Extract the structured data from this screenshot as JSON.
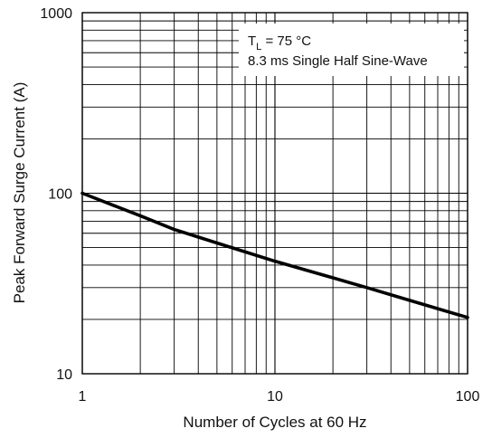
{
  "chart_data": {
    "type": "line",
    "x_scale": "log",
    "y_scale": "log",
    "xlabel": "Number of Cycles at 60 Hz",
    "ylabel": "Peak Forward Surge Current (A)",
    "xlim": [
      1,
      100
    ],
    "ylim": [
      10,
      1000
    ],
    "x_ticks": [
      {
        "value": 1,
        "label": "1"
      },
      {
        "value": 10,
        "label": "10"
      },
      {
        "value": 100,
        "label": "100"
      }
    ],
    "y_ticks": [
      {
        "value": 10,
        "label": "10"
      },
      {
        "value": 100,
        "label": "100"
      },
      {
        "value": 1000,
        "label": "1000"
      }
    ],
    "grid": true,
    "series": [
      {
        "x": [
          1,
          2,
          3,
          5,
          10,
          20,
          30,
          50,
          100
        ],
        "y": [
          100,
          75,
          63,
          53,
          42,
          34,
          30,
          25.5,
          20.5
        ]
      }
    ],
    "annotation": {
      "line1_main": "T",
      "line1_sub": "L",
      "line1_rest": " = 75 °C",
      "line2": "8.3 ms Single Half Sine-Wave",
      "placement": "top-right"
    },
    "colors": {
      "line": "#000000",
      "grid": "#000000",
      "background": "#ffffff"
    }
  }
}
